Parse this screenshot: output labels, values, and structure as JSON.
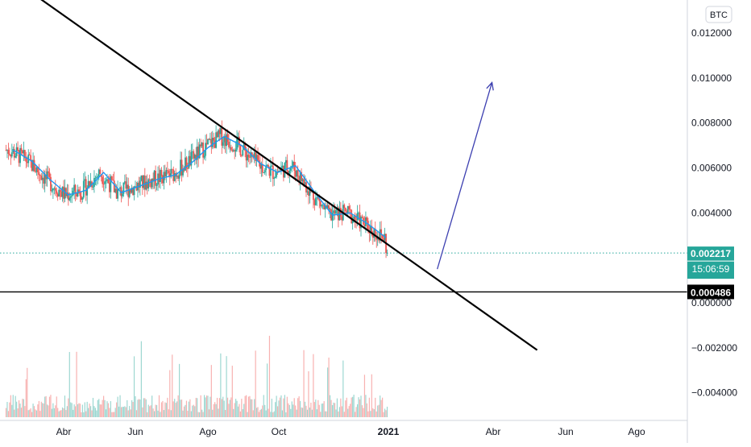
{
  "currency_badge": "BTC",
  "chart_data": {
    "type": "candlestick",
    "x_ticks": [
      "Abr",
      "Jun",
      "Ago",
      "Oct",
      "2021",
      "Abr",
      "Jun",
      "Ago"
    ],
    "x_tick_dates": [
      "2020-04-01",
      "2020-06-01",
      "2020-08-01",
      "2020-10-01",
      "2021-01-01",
      "2021-04-01",
      "2021-06-01",
      "2021-08-01"
    ],
    "y_ticks": [
      0.012,
      0.01,
      0.008,
      0.006,
      0.004,
      0.0,
      -0.002,
      -0.004
    ],
    "y_tick_labels": [
      "0.012000",
      "0.010000",
      "0.008000",
      "0.006000",
      "0.004000",
      "0.000000",
      "−0.002000",
      "−0.004000"
    ],
    "ylim": [
      -0.0047,
      0.0134
    ],
    "grid": false,
    "price_tag": {
      "value": 0.002217,
      "label": "0.002217",
      "countdown": "15:06:59",
      "color": "#26a69a"
    },
    "horizontal_level": {
      "value": 0.000486,
      "label": "0.000486",
      "color": "#000000"
    },
    "ma_color": "#2196f3",
    "up_color": "#26a69a",
    "down_color": "#ef5350",
    "ma_points": [
      {
        "x": "2020-02-18",
        "y": 0.0068
      },
      {
        "x": "2020-03-05",
        "y": 0.0063
      },
      {
        "x": "2020-03-20",
        "y": 0.0055
      },
      {
        "x": "2020-04-05",
        "y": 0.0048
      },
      {
        "x": "2020-04-20",
        "y": 0.005
      },
      {
        "x": "2020-05-05",
        "y": 0.0058
      },
      {
        "x": "2020-05-20",
        "y": 0.0049
      },
      {
        "x": "2020-06-05",
        "y": 0.0052
      },
      {
        "x": "2020-06-20",
        "y": 0.0055
      },
      {
        "x": "2020-07-05",
        "y": 0.0057
      },
      {
        "x": "2020-07-20",
        "y": 0.0063
      },
      {
        "x": "2020-08-01",
        "y": 0.0069
      },
      {
        "x": "2020-08-15",
        "y": 0.0074
      },
      {
        "x": "2020-08-30",
        "y": 0.007
      },
      {
        "x": "2020-09-15",
        "y": 0.0062
      },
      {
        "x": "2020-09-30",
        "y": 0.0058
      },
      {
        "x": "2020-10-15",
        "y": 0.0061
      },
      {
        "x": "2020-10-30",
        "y": 0.005
      },
      {
        "x": "2020-11-15",
        "y": 0.0039
      },
      {
        "x": "2020-11-30",
        "y": 0.004
      },
      {
        "x": "2020-12-15",
        "y": 0.0035
      },
      {
        "x": "2020-12-30",
        "y": 0.0029
      }
    ],
    "trendline": {
      "start": {
        "x": "2020-03-10",
        "y": 0.0136
      },
      "end": {
        "x": "2021-05-08",
        "y": -0.0021
      },
      "color": "#000000"
    },
    "projection_arrow": {
      "start": {
        "x": "2021-02-12",
        "y": 0.0015
      },
      "end": {
        "x": "2021-03-31",
        "y": 0.0098
      },
      "color": "#3c3fb0"
    },
    "volume_note": "volume histogram in lower pane, no axis values shown"
  }
}
